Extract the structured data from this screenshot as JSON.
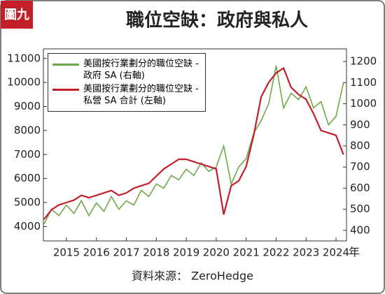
{
  "chart_data": {
    "type": "line",
    "badge": "圖九",
    "title": "職位空缺：政府與私人",
    "source": "資料來源： ZeroHedge",
    "xlabel": "年",
    "x": [
      2014.25,
      2014.5,
      2014.75,
      2015,
      2015.25,
      2015.5,
      2015.75,
      2016,
      2016.25,
      2016.5,
      2016.75,
      2017,
      2017.25,
      2017.5,
      2017.75,
      2018,
      2018.25,
      2018.5,
      2018.75,
      2019,
      2019.25,
      2019.5,
      2019.75,
      2020,
      2020.25,
      2020.5,
      2020.75,
      2021,
      2021.25,
      2021.5,
      2021.75,
      2022,
      2022.25,
      2022.5,
      2022.75,
      2023,
      2023.25,
      2023.5,
      2023.75,
      2024,
      2024.25
    ],
    "xlim": [
      2014.23,
      2024.35
    ],
    "xticks": [
      2015,
      2016,
      2017,
      2018,
      2019,
      2020,
      2021,
      2022,
      2023,
      2024
    ],
    "ylim": [
      3400,
      11400
    ],
    "yticks": [
      4000,
      5000,
      6000,
      7000,
      8000,
      9000,
      10000,
      11000
    ],
    "y2lim": [
      350,
      1260
    ],
    "y2ticks": [
      400,
      500,
      600,
      700,
      800,
      900,
      1000,
      1100,
      1200
    ],
    "series": [
      {
        "name": "美國按行業劃分的職位空缺 - 政府 SA (右軸)",
        "color": "#6fa84a",
        "axis": "y2",
        "values": [
          430,
          500,
          470,
          520,
          480,
          540,
          470,
          530,
          490,
          560,
          500,
          540,
          520,
          590,
          560,
          620,
          600,
          660,
          640,
          690,
          660,
          720,
          680,
          700,
          800,
          620,
          700,
          740,
          860,
          920,
          1000,
          1180,
          980,
          1050,
          1020,
          1080,
          980,
          1010,
          900,
          940,
          1100
        ]
      },
      {
        "name": "美國按行業劃分的職位空缺 - 私營 SA 合計 (左軸)",
        "color": "#c21f2b",
        "axis": "y",
        "values": [
          4300,
          4700,
          4900,
          5000,
          5100,
          5300,
          5200,
          5300,
          5400,
          5500,
          5300,
          5400,
          5600,
          5700,
          5800,
          6100,
          6400,
          6600,
          6800,
          6800,
          6700,
          6600,
          6500,
          6400,
          4500,
          5700,
          5900,
          6500,
          7800,
          9400,
          10000,
          10400,
          10600,
          9800,
          9500,
          9300,
          8700,
          8000,
          7900,
          7800,
          7000
        ]
      }
    ]
  }
}
